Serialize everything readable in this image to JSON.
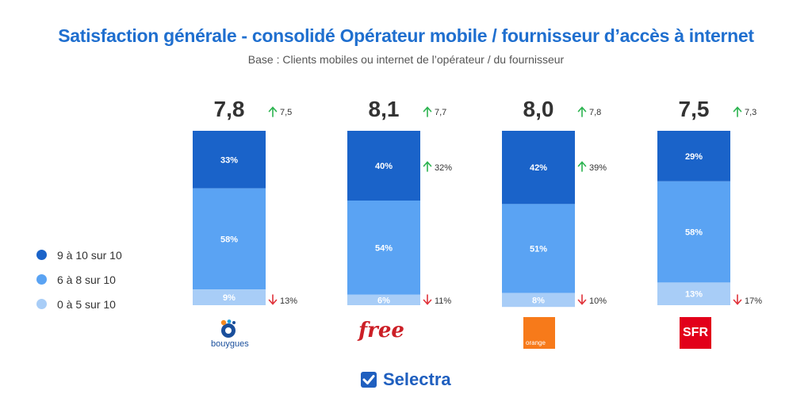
{
  "header": {
    "title": "Satisfaction générale - consolidé Opérateur mobile / fournisseur d’accès à internet",
    "subtitle": "Base : Clients mobiles ou internet de l’opérateur / du fournisseur"
  },
  "colors": {
    "high": "#1a63c9",
    "mid": "#5aa3f3",
    "low": "#a8cdf7",
    "up": "#2bb34f",
    "down": "#e0323a"
  },
  "legend": {
    "items": [
      {
        "label": "9 à 10 sur 10",
        "color": "#1a63c9"
      },
      {
        "label": "6 à 8 sur 10",
        "color": "#5aa3f3"
      },
      {
        "label": "0 à 5 sur 10",
        "color": "#a8cdf7"
      }
    ]
  },
  "chart_data": {
    "type": "bar",
    "stacked": true,
    "categories": [
      "Bouygues",
      "Free",
      "Orange",
      "SFR"
    ],
    "series": [
      {
        "name": "9 à 10 sur 10",
        "values": [
          33,
          40,
          42,
          29
        ],
        "labels": [
          "33%",
          "40%",
          "42%",
          "29%"
        ]
      },
      {
        "name": "6 à 8 sur 10",
        "values": [
          58,
          54,
          51,
          58
        ],
        "labels": [
          "58%",
          "54%",
          "51%",
          "58%"
        ]
      },
      {
        "name": "0 à 5 sur 10",
        "values": [
          9,
          6,
          8,
          13
        ],
        "labels": [
          "9%",
          "6%",
          "8%",
          "13%"
        ]
      }
    ],
    "scores": [
      "7,8",
      "8,1",
      "8,0",
      "7,5"
    ],
    "previous_scores": [
      "7,5",
      "7,7",
      "7,8",
      "7,3"
    ],
    "previous_high": [
      "32%",
      "39%"
    ],
    "previous_low": [
      "13%",
      "11%",
      "10%",
      "17%"
    ],
    "ylim": [
      0,
      100
    ]
  },
  "logos": {
    "bouygues": "bouygues",
    "free": "free",
    "orange": "orange",
    "sfr": "SFR"
  },
  "brand": {
    "name": "Selectra",
    "icon": "check-square-icon"
  }
}
